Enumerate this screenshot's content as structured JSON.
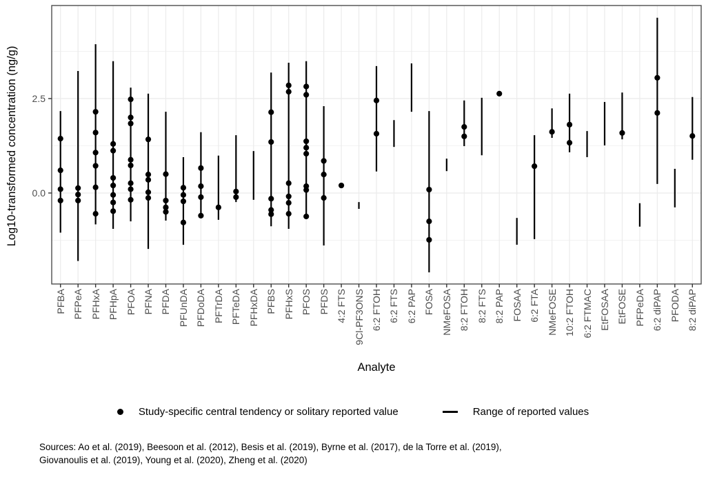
{
  "figure": {
    "y_axis_title": "Log10-transformed concentration (ng/g)",
    "x_axis_title": "Analyte",
    "y_tick_labels": [
      "2.5",
      "0.0"
    ]
  },
  "legend": {
    "point_label": "Study-specific central tendency or solitary reported value",
    "line_label": "Range of reported values"
  },
  "sources": {
    "line1": "Sources: Ao et al. (2019), Beesoon et al. (2012), Besis et al. (2019), Byrne et al. (2017), de la Torre et al. (2019),",
    "line2": "Giovanoulis et al. (2019), Young et al. (2020), Zheng et al. (2020)"
  },
  "chart_data": {
    "type": "pointrange",
    "title": "",
    "xlabel": "Analyte",
    "ylabel": "Log10-transformed concentration (ng/g)",
    "ylim": [
      -2.41,
      4.96
    ],
    "yticks": [
      0.0,
      2.5
    ],
    "minor_gridlines": [
      -1.25,
      1.25,
      3.75
    ],
    "grid": true,
    "legend_position": "bottom",
    "colors": {
      "points": "#000000",
      "range_lines": "#000000",
      "grid_major": "#ebebeb",
      "grid_minor": "#f2f2f2",
      "panel_border": "#4d4d4d",
      "axis_text": "#4d4d4d",
      "tick_marks": "#333333"
    },
    "series": [
      {
        "analyte": "PFBA",
        "range": [
          -1.05,
          2.17
        ],
        "points": [
          1.44,
          0.6,
          0.1,
          -0.2
        ]
      },
      {
        "analyte": "PFPeA",
        "range": [
          -1.8,
          3.23
        ],
        "points": [
          0.13,
          -0.04,
          -0.2
        ]
      },
      {
        "analyte": "PFHxA",
        "range": [
          -0.83,
          3.94
        ],
        "points": [
          2.15,
          1.6,
          1.07,
          0.72,
          0.15,
          -0.55
        ]
      },
      {
        "analyte": "PFHpA",
        "range": [
          -0.95,
          3.49
        ],
        "points": [
          1.3,
          1.12,
          0.4,
          0.2,
          -0.05,
          -0.25,
          -0.48
        ]
      },
      {
        "analyte": "PFOA",
        "range": [
          -0.75,
          2.79
        ],
        "points": [
          2.48,
          2.0,
          1.84,
          0.88,
          0.73,
          0.26,
          0.1,
          -0.18
        ]
      },
      {
        "analyte": "PFNA",
        "range": [
          -1.48,
          2.63
        ],
        "points": [
          1.42,
          0.49,
          0.35,
          0.02,
          -0.13
        ]
      },
      {
        "analyte": "PFDA",
        "range": [
          -0.73,
          2.15
        ],
        "points": [
          0.5,
          -0.2,
          -0.38,
          -0.5
        ]
      },
      {
        "analyte": "PFUnDA",
        "range": [
          -1.37,
          0.95
        ],
        "points": [
          0.14,
          -0.05,
          -0.22,
          -0.78
        ]
      },
      {
        "analyte": "PFDoDA",
        "range": [
          -0.64,
          1.61
        ],
        "points": [
          0.66,
          0.18,
          -0.11,
          -0.6
        ]
      },
      {
        "analyte": "PFTrDA",
        "range": [
          -0.71,
          0.99
        ],
        "points": [
          -0.38
        ]
      },
      {
        "analyte": "PFTeDA",
        "range": [
          -0.24,
          1.53
        ],
        "points": [
          0.04,
          -0.11
        ]
      },
      {
        "analyte": "PFHxDA",
        "range": [
          -0.18,
          1.11
        ],
        "points": []
      },
      {
        "analyte": "PFBS",
        "range": [
          -0.88,
          3.19
        ],
        "points": [
          2.14,
          1.35,
          -0.15,
          -0.45,
          -0.56
        ]
      },
      {
        "analyte": "PFHxS",
        "range": [
          -0.95,
          3.45
        ],
        "points": [
          2.85,
          2.68,
          0.26,
          -0.09,
          -0.26,
          -0.55
        ]
      },
      {
        "analyte": "PFOS",
        "range": [
          -0.68,
          3.49
        ],
        "points": [
          2.82,
          2.6,
          1.37,
          1.2,
          1.04,
          0.18,
          0.08,
          -0.62
        ]
      },
      {
        "analyte": "PFDS",
        "range": [
          -1.39,
          2.3
        ],
        "points": [
          0.85,
          0.49,
          -0.13
        ]
      },
      {
        "analyte": "4:2 FTS",
        "range": null,
        "points": [
          0.2
        ]
      },
      {
        "analyte": "9Cl-PF3ONS",
        "range": [
          -0.42,
          -0.24
        ],
        "points": []
      },
      {
        "analyte": "6:2 FTOH",
        "range": [
          0.57,
          3.36
        ],
        "points": [
          2.45,
          1.57
        ]
      },
      {
        "analyte": "6:2 FTS",
        "range": [
          1.22,
          1.93
        ],
        "points": []
      },
      {
        "analyte": "6:2 PAP",
        "range": [
          2.15,
          3.43
        ],
        "points": []
      },
      {
        "analyte": "FOSA",
        "range": [
          -2.1,
          2.17
        ],
        "points": [
          0.09,
          -0.75,
          -1.24
        ]
      },
      {
        "analyte": "NMeFOSA",
        "range": [
          0.58,
          0.91
        ],
        "points": []
      },
      {
        "analyte": "8:2 FTOH",
        "range": [
          1.24,
          2.45
        ],
        "points": [
          1.75,
          1.5
        ]
      },
      {
        "analyte": "8:2 FTS",
        "range": [
          1.0,
          2.52
        ],
        "points": []
      },
      {
        "analyte": "8:2 PAP",
        "range": null,
        "points": [
          2.63
        ]
      },
      {
        "analyte": "FOSAA",
        "range": [
          -1.37,
          -0.66
        ],
        "points": []
      },
      {
        "analyte": "6:2 FTA",
        "range": [
          -1.22,
          1.53
        ],
        "points": [
          0.71
        ]
      },
      {
        "analyte": "NMeFOSE",
        "range": [
          1.46,
          2.24
        ],
        "points": [
          1.62
        ]
      },
      {
        "analyte": "10:2 FTOH",
        "range": [
          1.08,
          2.63
        ],
        "points": [
          1.81,
          1.33
        ]
      },
      {
        "analyte": "6:2 FTMAC",
        "range": [
          0.95,
          1.64
        ],
        "points": []
      },
      {
        "analyte": "EtFOSAA",
        "range": [
          1.26,
          2.41
        ],
        "points": []
      },
      {
        "analyte": "EtFOSE",
        "range": [
          1.42,
          2.66
        ],
        "points": [
          1.59
        ]
      },
      {
        "analyte": "PFPeDA",
        "range": [
          -0.89,
          -0.27
        ],
        "points": []
      },
      {
        "analyte": "6:2 diPAP",
        "range": [
          0.24,
          4.64
        ],
        "points": [
          3.05,
          2.12
        ]
      },
      {
        "analyte": "PFODA",
        "range": [
          -0.38,
          0.64
        ],
        "points": []
      },
      {
        "analyte": "8:2 diPAP",
        "range": [
          0.88,
          2.54
        ],
        "points": [
          1.51
        ]
      }
    ]
  }
}
